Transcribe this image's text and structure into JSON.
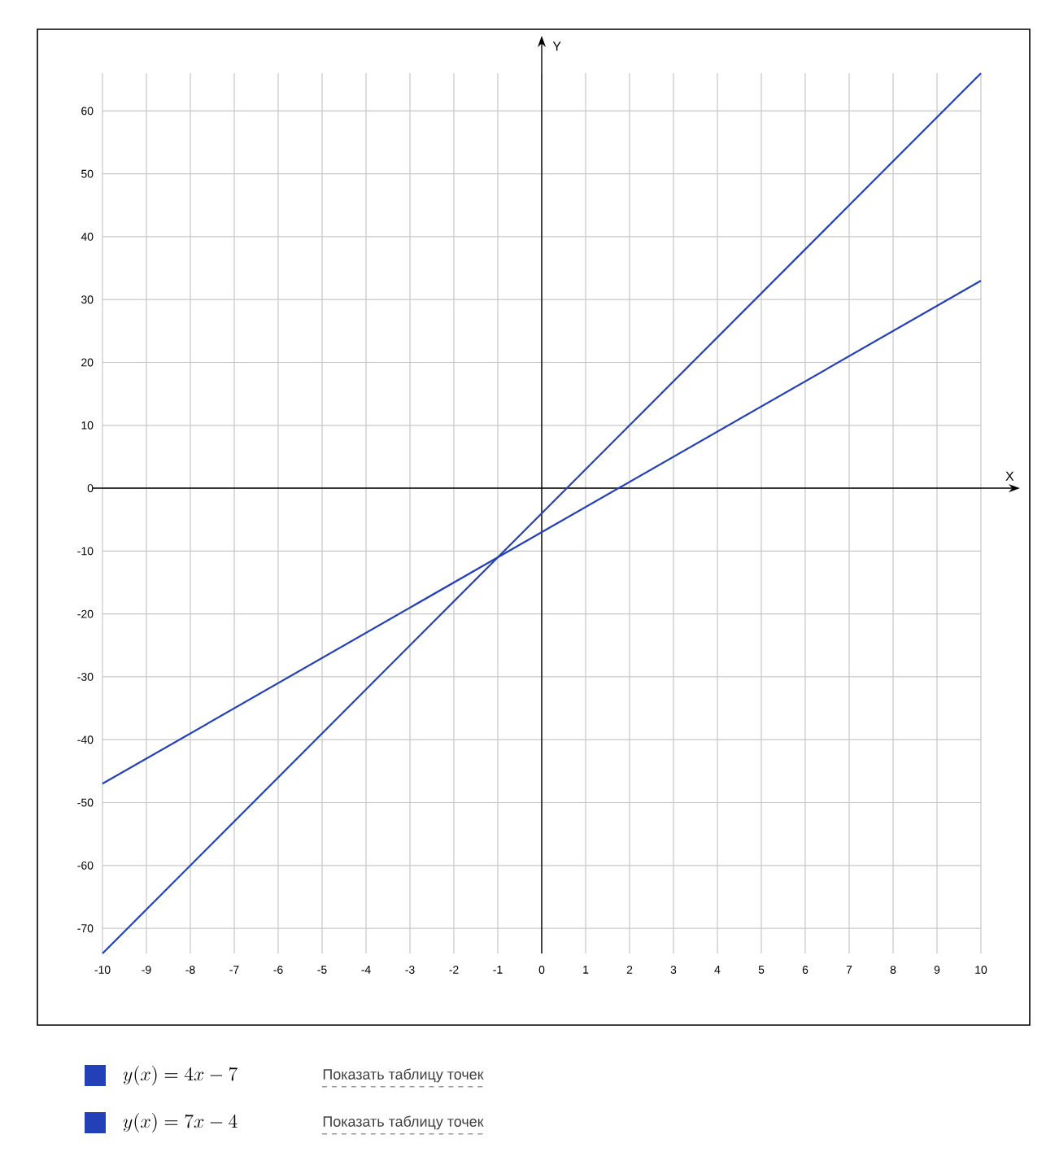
{
  "chart_data": {
    "type": "line",
    "xlabel": "X",
    "ylabel": "Y",
    "x": [
      -10,
      10
    ],
    "series": [
      {
        "name": "y(x) = 4x - 7",
        "color": "#2440b8",
        "values": [
          -47,
          33
        ]
      },
      {
        "name": "y(x) = 7x - 4",
        "color": "#2440b8",
        "values": [
          -74,
          66
        ]
      }
    ],
    "xlim": [
      -10,
      10
    ],
    "ylim": [
      -74,
      66
    ],
    "xticks": [
      -10,
      -9,
      -8,
      -7,
      -6,
      -5,
      -4,
      -3,
      -2,
      -1,
      0,
      1,
      2,
      3,
      4,
      5,
      6,
      7,
      8,
      9,
      10
    ],
    "yticks": [
      -70,
      -60,
      -50,
      -40,
      -30,
      -20,
      -10,
      0,
      10,
      20,
      30,
      40,
      50,
      60
    ],
    "grid": true,
    "legend": "bottom",
    "marker": "none",
    "line_style": "solid",
    "annotations": [
      "Показать таблицу точек",
      "Показать таблицу точек"
    ]
  }
}
